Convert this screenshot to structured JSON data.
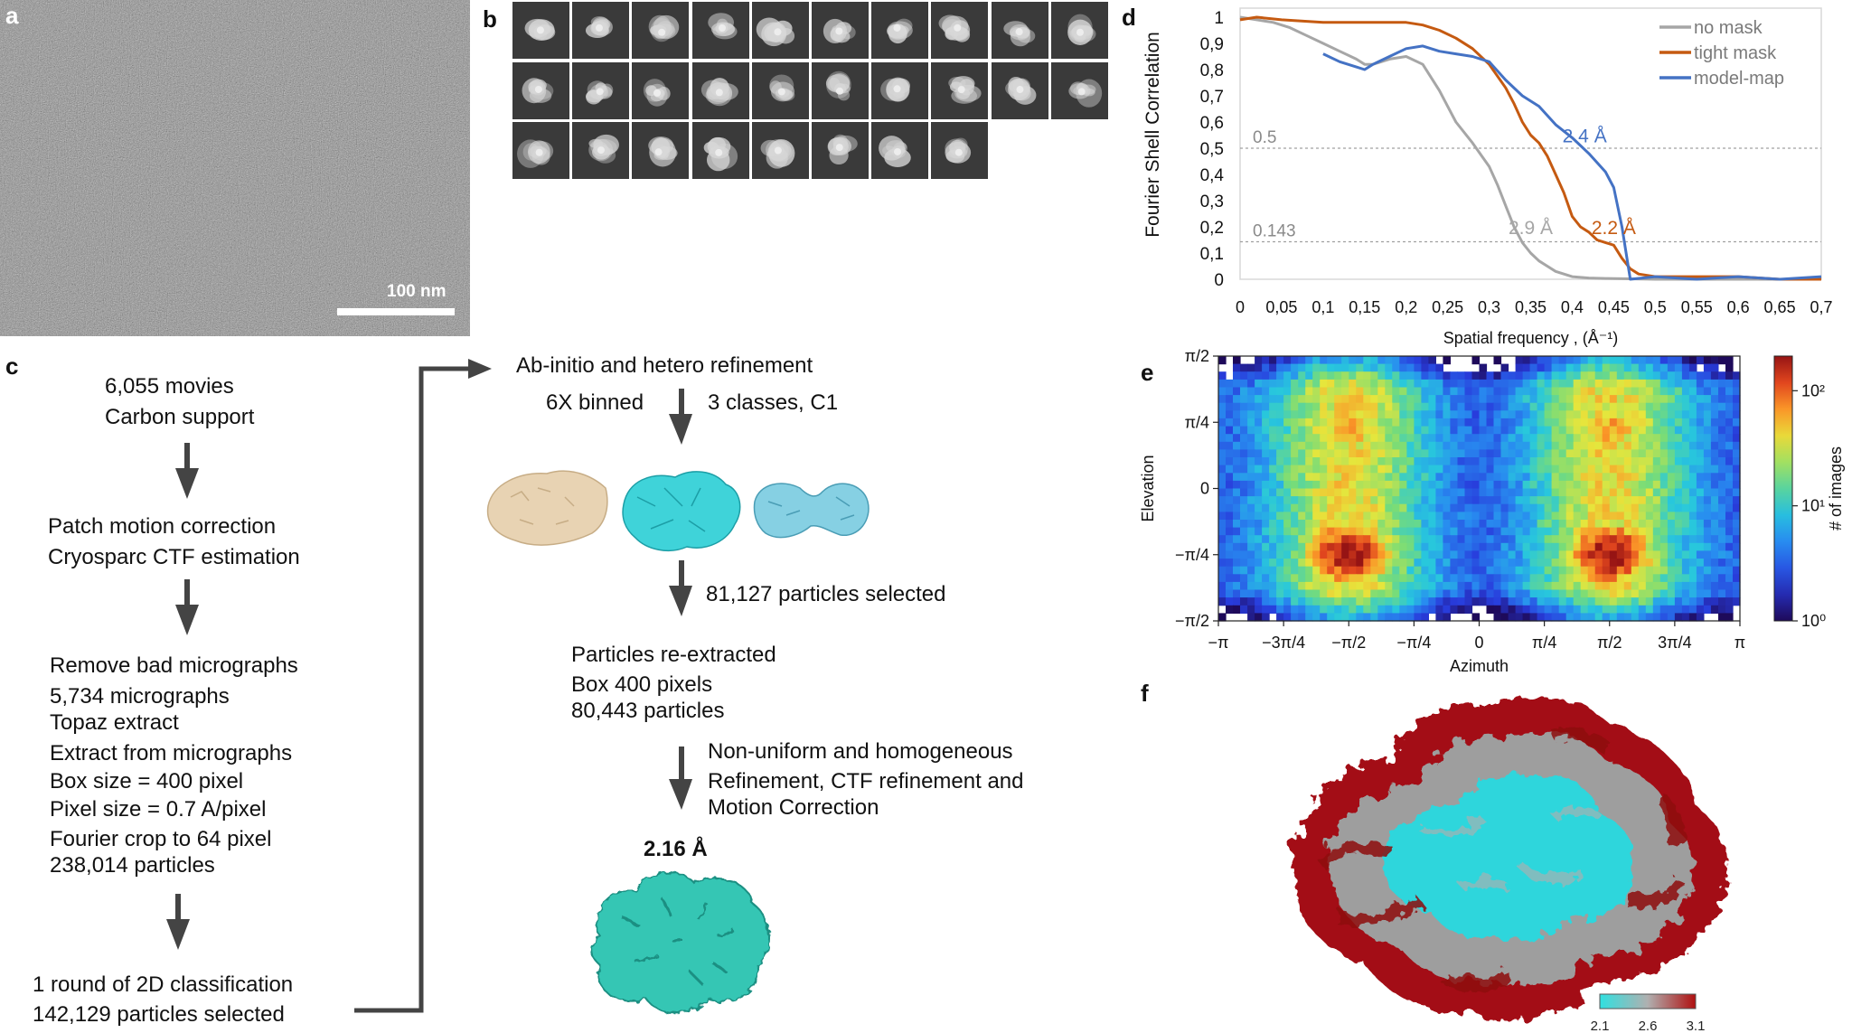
{
  "panels": {
    "a": "a",
    "b": "b",
    "c": "c",
    "d": "d",
    "e": "e",
    "f": "f"
  },
  "panel_a": {
    "scale_bar_label": "100 nm"
  },
  "panel_c": {
    "left_blocks": [
      [
        "6,055 movies",
        "Carbon support"
      ],
      [
        "Patch motion correction",
        "Cryosparc CTF estimation"
      ],
      [
        "Remove bad micrographs",
        "5,734 micrographs",
        "Topaz extract",
        "Extract from micrographs",
        "Box size = 400 pixel",
        "Pixel size = 0.7 A/pixel",
        "Fourier crop to 64 pixel",
        "238,014 particles"
      ],
      [
        "1 round of 2D classification",
        "142,129 particles selected"
      ]
    ],
    "ab_initio_title": "Ab-initio and hetero refinement",
    "binning": "6X binned",
    "classes": "3 classes, C1",
    "particles_selected": "81,127 particles selected",
    "reextract": [
      "Particles re-extracted",
      "Box 400 pixels",
      "80,443 particles"
    ],
    "refinement": [
      "Non-uniform and homogeneous",
      "Refinement, CTF refinement and",
      "Motion Correction"
    ],
    "final_resolution": "2.16 Å",
    "class_colors": [
      "#e8d3b3",
      "#3fd3d9",
      "#86d0e3"
    ],
    "final_map_color": "#34c6b4"
  },
  "chart_data": [
    {
      "type": "line",
      "panel": "d",
      "title": "",
      "xlabel": "Spatial frequency , (Å⁻¹)",
      "ylabel": "Fourier Shell Correlation",
      "xlim": [
        0,
        0.7
      ],
      "ylim": [
        0,
        1
      ],
      "x_ticks": [
        "0",
        "0,05",
        "0,1",
        "0,15",
        "0,2",
        "0,25",
        "0,3",
        "0,35",
        "0,4",
        "0,45",
        "0,5",
        "0,55",
        "0,6",
        "0,65",
        "0,7"
      ],
      "y_ticks": [
        "0",
        "0,1",
        "0,2",
        "0,3",
        "0,4",
        "0,5",
        "0,6",
        "0,7",
        "0,8",
        "0,9",
        "1"
      ],
      "thresholds": [
        {
          "value": 0.5,
          "label": "0.5"
        },
        {
          "value": 0.143,
          "label": "0.143"
        }
      ],
      "legend_position": "top-right",
      "series": [
        {
          "name": "no mask",
          "color": "#a6a6a6",
          "x": [
            0,
            0.02,
            0.04,
            0.06,
            0.08,
            0.1,
            0.12,
            0.14,
            0.15,
            0.16,
            0.18,
            0.2,
            0.22,
            0.24,
            0.25,
            0.26,
            0.28,
            0.3,
            0.31,
            0.32,
            0.33,
            0.34,
            0.35,
            0.36,
            0.37,
            0.38,
            0.4,
            0.42,
            0.44,
            0.46,
            0.5,
            0.6,
            0.7
          ],
          "y": [
            1.0,
            0.99,
            0.98,
            0.96,
            0.93,
            0.9,
            0.87,
            0.84,
            0.82,
            0.82,
            0.84,
            0.85,
            0.82,
            0.72,
            0.66,
            0.6,
            0.52,
            0.43,
            0.36,
            0.28,
            0.2,
            0.14,
            0.1,
            0.07,
            0.05,
            0.03,
            0.01,
            0.005,
            0.003,
            0.002,
            0.0,
            0.0,
            0.0
          ]
        },
        {
          "name": "tight mask",
          "color": "#c55a11",
          "x": [
            0,
            0.02,
            0.05,
            0.1,
            0.15,
            0.2,
            0.22,
            0.24,
            0.26,
            0.28,
            0.3,
            0.32,
            0.33,
            0.34,
            0.35,
            0.36,
            0.37,
            0.38,
            0.39,
            0.4,
            0.41,
            0.42,
            0.43,
            0.44,
            0.45,
            0.46,
            0.47,
            0.48,
            0.5,
            0.52,
            0.55,
            0.6,
            0.65,
            0.7
          ],
          "y": [
            0.99,
            1.0,
            0.99,
            0.98,
            0.98,
            0.98,
            0.97,
            0.95,
            0.92,
            0.88,
            0.82,
            0.73,
            0.67,
            0.6,
            0.55,
            0.52,
            0.47,
            0.4,
            0.33,
            0.24,
            0.2,
            0.18,
            0.15,
            0.14,
            0.13,
            0.08,
            0.04,
            0.02,
            0.01,
            0.01,
            0.01,
            0.01,
            0.0,
            0.0
          ]
        },
        {
          "name": "model-map",
          "color": "#4472c4",
          "x": [
            0.1,
            0.12,
            0.14,
            0.15,
            0.16,
            0.18,
            0.2,
            0.22,
            0.24,
            0.26,
            0.28,
            0.3,
            0.32,
            0.34,
            0.36,
            0.38,
            0.4,
            0.42,
            0.44,
            0.45,
            0.46,
            0.465,
            0.47,
            0.5,
            0.55,
            0.6,
            0.65,
            0.7
          ],
          "y": [
            0.86,
            0.83,
            0.81,
            0.8,
            0.82,
            0.85,
            0.88,
            0.89,
            0.87,
            0.86,
            0.85,
            0.83,
            0.76,
            0.7,
            0.66,
            0.59,
            0.54,
            0.48,
            0.41,
            0.35,
            0.2,
            0.1,
            0.0,
            0.01,
            0.0,
            0.01,
            0.0,
            0.01
          ]
        }
      ],
      "annotations": [
        {
          "text": "2.9 Å",
          "color": "#a6a6a6",
          "x": 0.35,
          "y": 0.18
        },
        {
          "text": "2.2 Å",
          "color": "#c55a11",
          "x": 0.45,
          "y": 0.18
        },
        {
          "text": "2.4 Å",
          "color": "#4472c4",
          "x": 0.415,
          "y": 0.53
        }
      ]
    },
    {
      "type": "heatmap",
      "panel": "e",
      "xlabel": "Azimuth",
      "ylabel": "Elevation",
      "x_ticks": [
        "−π",
        "−3π/4",
        "−π/2",
        "−π/4",
        "0",
        "π/4",
        "π/2",
        "3π/4",
        "π"
      ],
      "y_ticks": [
        "π/2",
        "π/4",
        "0",
        "−π/4",
        "−π/2"
      ],
      "xlim": [
        -3.1416,
        3.1416
      ],
      "ylim": [
        -1.5708,
        1.5708
      ],
      "colorbar_label": "# of images",
      "colorbar_ticks": [
        "10²",
        "10¹",
        "10⁰"
      ],
      "colorbar_range": [
        1,
        200
      ],
      "colorbar_scale": "log",
      "peaks": [
        {
          "azimuth": -1.5708,
          "elevation": -0.78,
          "count": 200
        },
        {
          "azimuth": 1.5708,
          "elevation": -0.78,
          "count": 200
        },
        {
          "azimuth": -1.5708,
          "elevation": 0.72,
          "count": 60
        },
        {
          "azimuth": 1.5708,
          "elevation": 0.72,
          "count": 60
        }
      ]
    }
  ],
  "panel_f": {
    "colorbar_ticks": [
      "2.1",
      "2.6",
      "3.1"
    ],
    "colorbar_colors": [
      "#30e0e0",
      "#b0b0b0",
      "#b01010"
    ]
  }
}
